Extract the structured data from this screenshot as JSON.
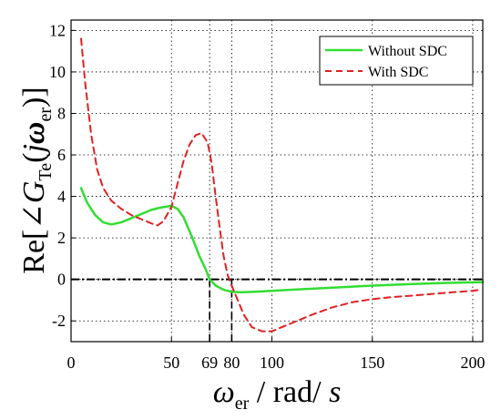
{
  "chart_data": {
    "type": "line",
    "title": "",
    "xlabel": {
      "symbol": "ω",
      "subscript": "er",
      "unit_text": " / rad/ ",
      "unit_tail": "s"
    },
    "ylabel": {
      "prefix": "Re[∠",
      "symbol": "G",
      "subscript": "Te",
      "open": "(",
      "j": "j",
      "omega": "ω",
      "omega_sub": "er",
      "close": ")]"
    },
    "xlim": [
      0,
      205
    ],
    "ylim": [
      -3,
      12.5
    ],
    "xticks": [
      0,
      50,
      69,
      80,
      100,
      150,
      200
    ],
    "xtick_labels": [
      "0",
      "50",
      "69",
      "80",
      "100",
      "150",
      "200"
    ],
    "yticks": [
      -2,
      0,
      2,
      4,
      6,
      8,
      10,
      12
    ],
    "ytick_labels": [
      "-2",
      "0",
      "2",
      "4",
      "6",
      "8",
      "10",
      "12"
    ],
    "grid": true,
    "legend_position": "top-right",
    "series": [
      {
        "name": "Without SDC",
        "color": "#33dd33",
        "style": "solid",
        "x": [
          5,
          8,
          12,
          16,
          20,
          25,
          30,
          35,
          40,
          44,
          47,
          50,
          53,
          56,
          60,
          64,
          67,
          69,
          72,
          76,
          80,
          85,
          90,
          100,
          110,
          120,
          130,
          140,
          150,
          160,
          170,
          180,
          190,
          200,
          205
        ],
        "y": [
          4.4,
          3.7,
          3.1,
          2.75,
          2.65,
          2.75,
          2.95,
          3.15,
          3.35,
          3.45,
          3.5,
          3.55,
          3.4,
          3.0,
          2.1,
          1.1,
          0.5,
          0.0,
          -0.3,
          -0.5,
          -0.6,
          -0.62,
          -0.6,
          -0.55,
          -0.5,
          -0.45,
          -0.4,
          -0.35,
          -0.3,
          -0.26,
          -0.22,
          -0.19,
          -0.16,
          -0.14,
          -0.13
        ]
      },
      {
        "name": "With SDC",
        "color": "#dd2222",
        "style": "dashed",
        "x": [
          5,
          7,
          10,
          13,
          16,
          20,
          25,
          30,
          35,
          40,
          43,
          46,
          50,
          53,
          56,
          59,
          62,
          65,
          68,
          70,
          72,
          74,
          76,
          78,
          80,
          83,
          86,
          90,
          95,
          100,
          110,
          120,
          130,
          140,
          150,
          160,
          170,
          180,
          190,
          200,
          204
        ],
        "y": [
          11.6,
          9.5,
          7.0,
          5.3,
          4.4,
          3.8,
          3.4,
          3.1,
          2.9,
          2.7,
          2.6,
          2.8,
          3.5,
          4.6,
          5.7,
          6.5,
          6.95,
          7.05,
          6.6,
          5.6,
          4.0,
          2.5,
          1.1,
          0.2,
          -0.3,
          -1.0,
          -1.7,
          -2.3,
          -2.5,
          -2.5,
          -2.1,
          -1.7,
          -1.35,
          -1.1,
          -0.95,
          -0.85,
          -0.78,
          -0.7,
          -0.62,
          -0.55,
          -0.5
        ]
      }
    ],
    "reference_lines": {
      "horizontal_y": 0,
      "vertical_x": [
        69,
        80
      ]
    }
  }
}
